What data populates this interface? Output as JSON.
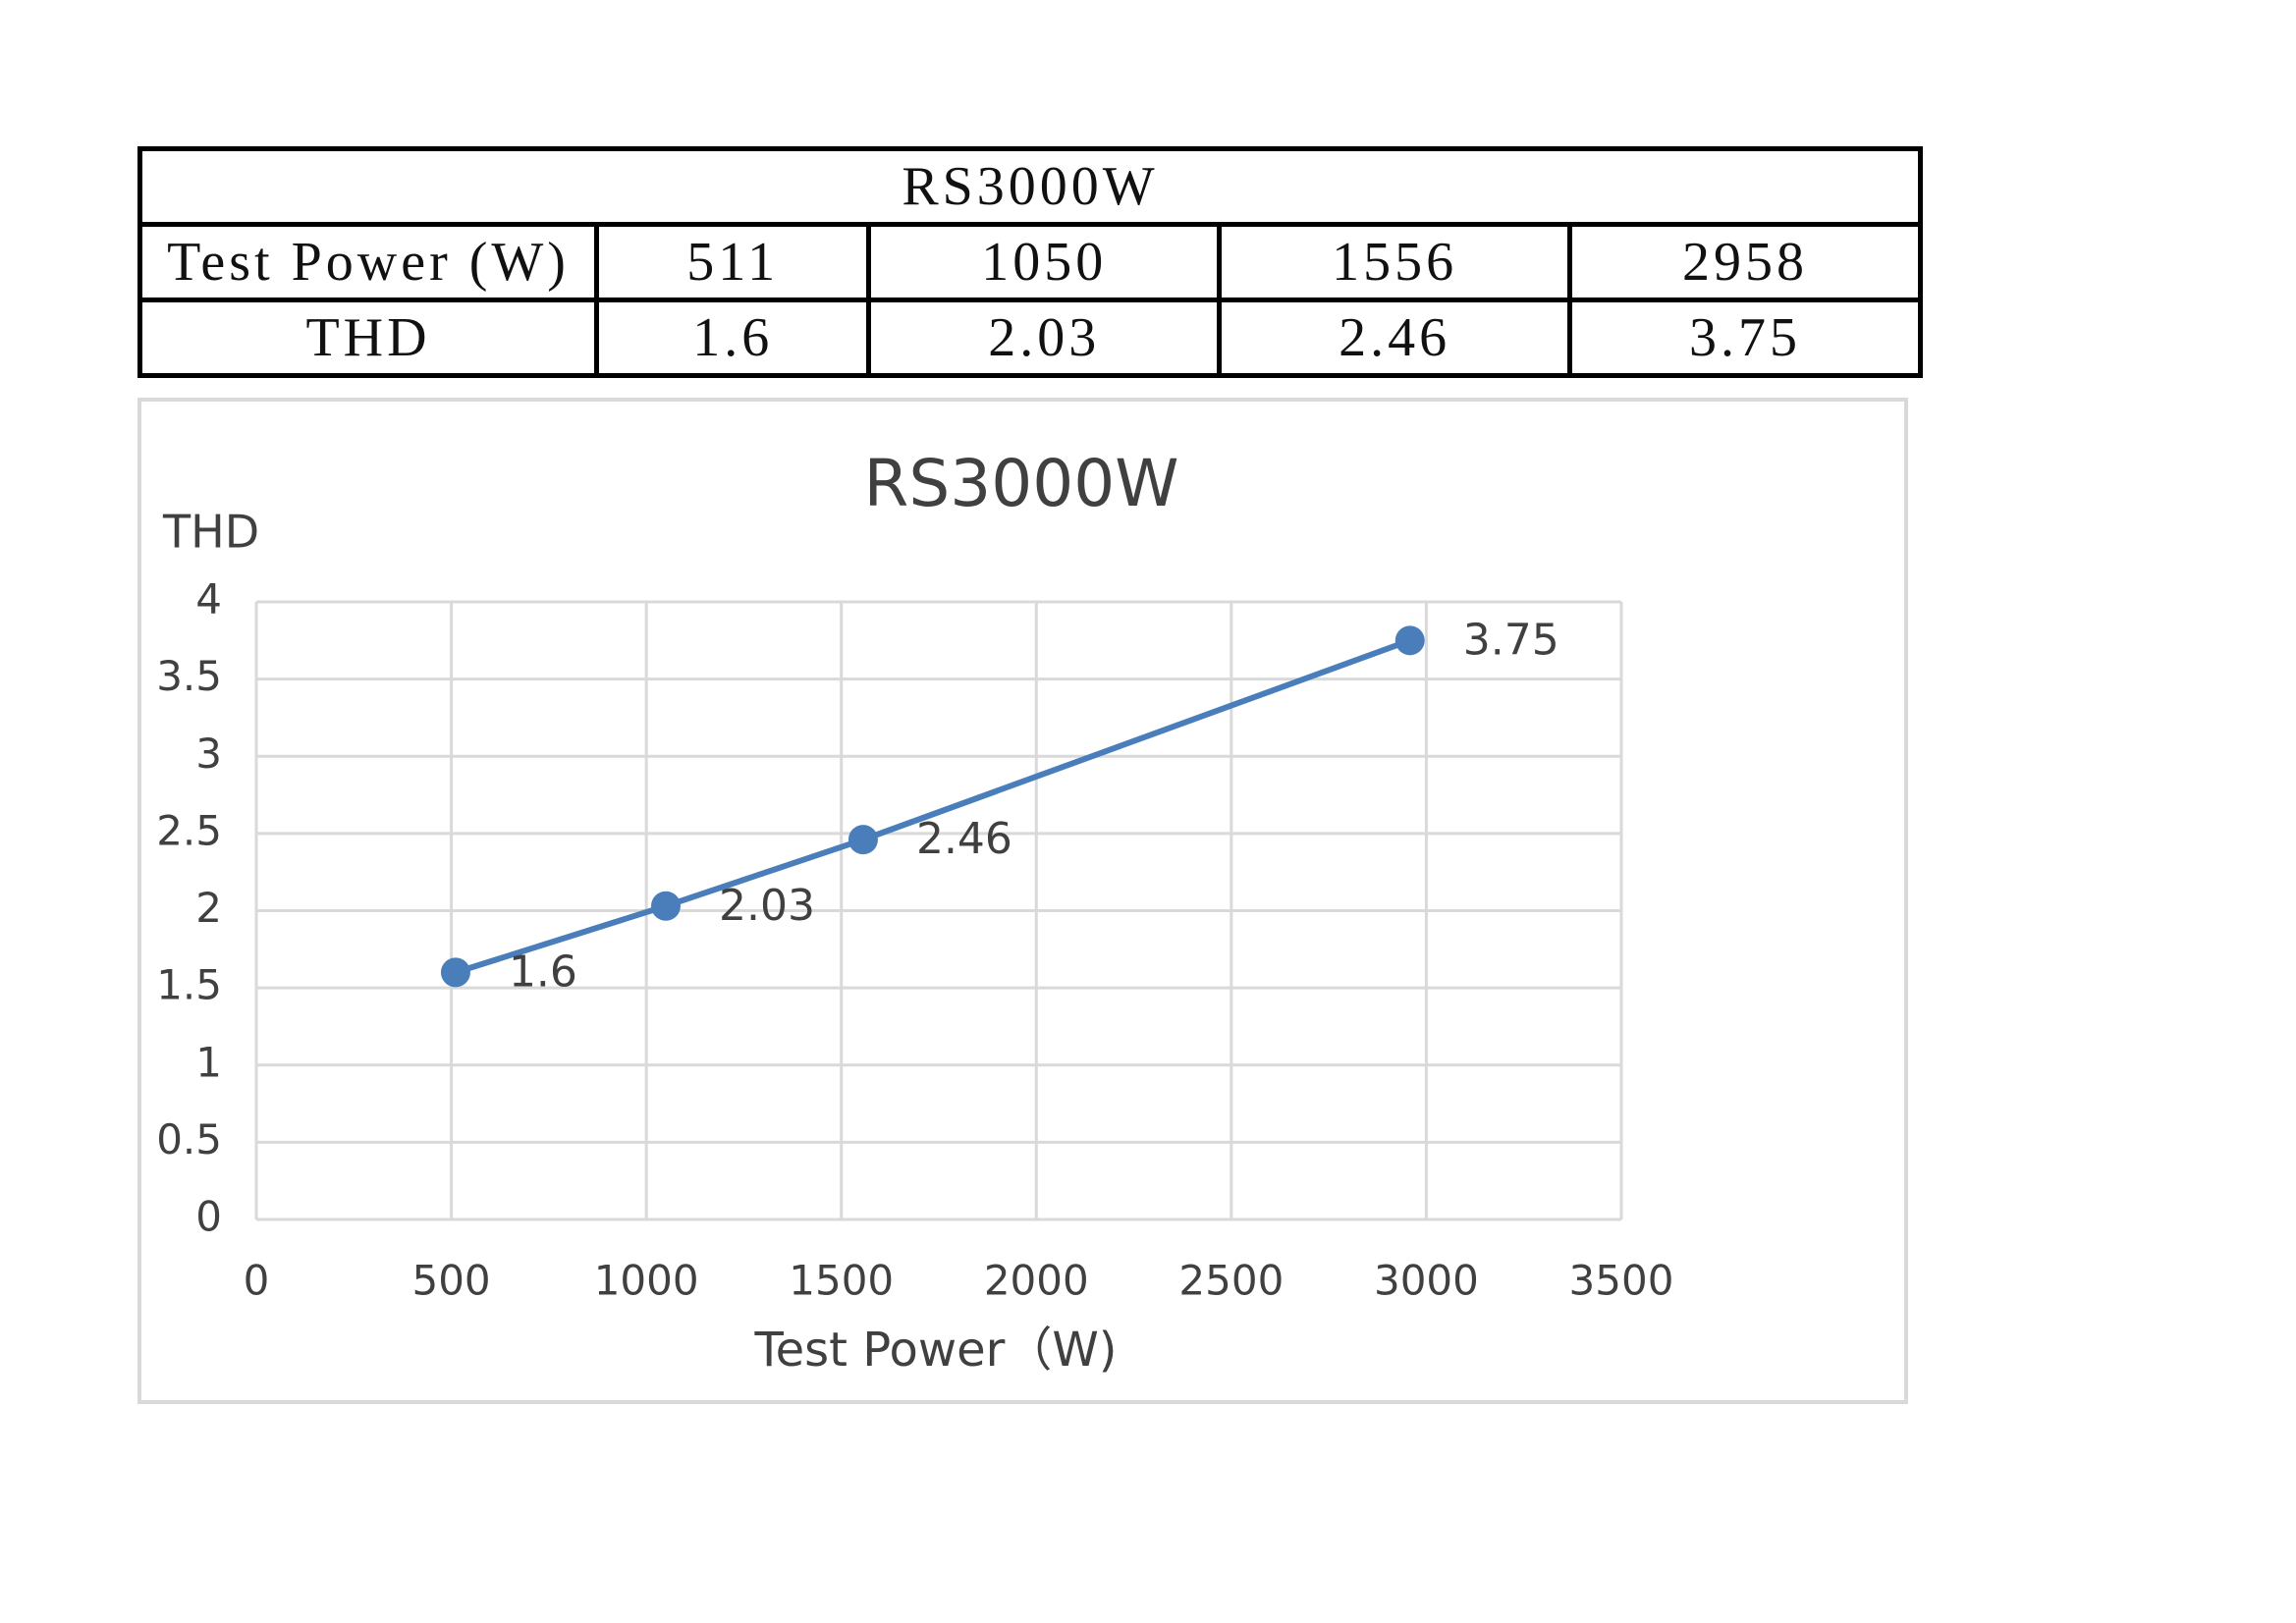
{
  "table": {
    "title": "RS3000W",
    "rows": [
      [
        "Test Power (W)",
        "511",
        "1050",
        "1556",
        "2958"
      ],
      [
        "THD",
        "1.6",
        "2.03",
        "2.46",
        "3.75"
      ]
    ]
  },
  "chart_data": {
    "type": "line",
    "title": "RS3000W",
    "x_label": "Test Power（W)",
    "y_label": "THD",
    "x": [
      511,
      1050,
      1556,
      2958
    ],
    "series": [
      {
        "name": "THD",
        "color": "#4a7ebb",
        "values": [
          1.6,
          2.03,
          2.46,
          3.75
        ]
      }
    ],
    "xlim": [
      0,
      3500
    ],
    "xticks": [
      0,
      500,
      1000,
      1500,
      2000,
      2500,
      3000,
      3500
    ],
    "ylim": [
      0,
      4
    ],
    "yticks": [
      0,
      0.5,
      1,
      1.5,
      2,
      2.5,
      3,
      3.5,
      4
    ],
    "grid": true,
    "data_labels": true
  }
}
